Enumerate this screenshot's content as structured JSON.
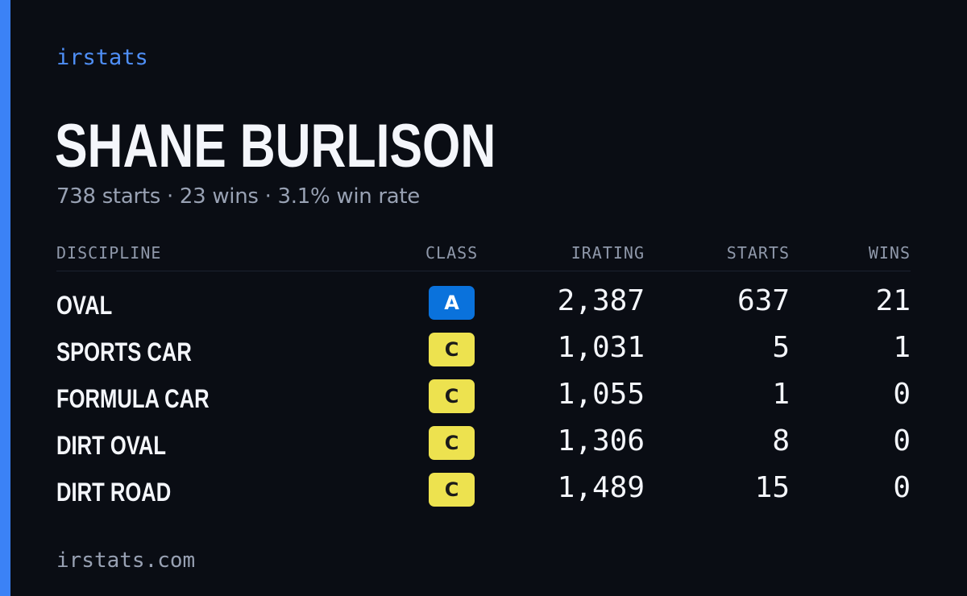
{
  "brand": "irstats",
  "driver_name": "SHANE BURLISON",
  "summary": "738 starts · 23 wins · 3.1% win rate",
  "columns": {
    "discipline": "DISCIPLINE",
    "class": "CLASS",
    "irating": "IRATING",
    "starts": "STARTS",
    "wins": "WINS"
  },
  "rows": [
    {
      "discipline": "OVAL",
      "class": "A",
      "irating": "2,387",
      "starts": "637",
      "wins": "21"
    },
    {
      "discipline": "SPORTS CAR",
      "class": "C",
      "irating": "1,031",
      "starts": "5",
      "wins": "1"
    },
    {
      "discipline": "FORMULA CAR",
      "class": "C",
      "irating": "1,055",
      "starts": "1",
      "wins": "0"
    },
    {
      "discipline": "DIRT OVAL",
      "class": "C",
      "irating": "1,306",
      "starts": "8",
      "wins": "0"
    },
    {
      "discipline": "DIRT ROAD",
      "class": "C",
      "irating": "1,489",
      "starts": "15",
      "wins": "0"
    }
  ],
  "class_colors": {
    "A": {
      "bg": "#0a72dc",
      "fg": "#ffffff"
    },
    "C": {
      "bg": "#ede24f",
      "fg": "#1a1a1a"
    }
  },
  "accent_color": "#3b82f6",
  "footer": "irstats.com"
}
